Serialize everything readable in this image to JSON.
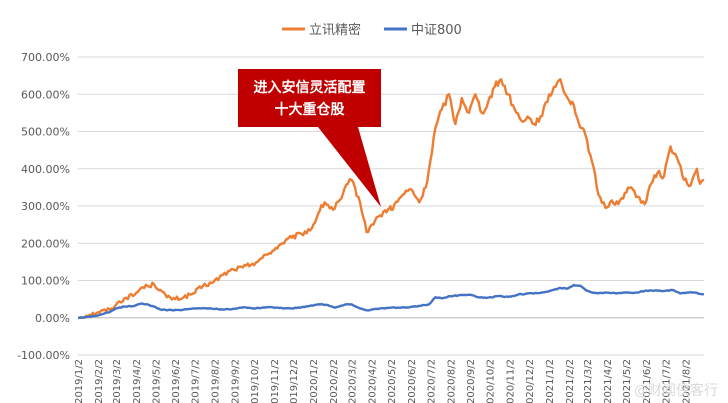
{
  "chart_data": {
    "type": "line",
    "ylim": [
      -1.0,
      7.0
    ],
    "ytick_labels": [
      "-100.00%",
      "0.00%",
      "100.00%",
      "200.00%",
      "300.00%",
      "400.00%",
      "500.00%",
      "600.00%",
      "700.00%"
    ],
    "ytick_values": [
      -1,
      0,
      1,
      2,
      3,
      4,
      5,
      6,
      7
    ],
    "xtick_labels": [
      "2019/1/2",
      "2019/2/2",
      "2019/3/2",
      "2019/4/2",
      "2019/5/2",
      "2019/6/2",
      "2019/7/2",
      "2019/8/2",
      "2019/9/2",
      "2019/10/2",
      "2019/11/2",
      "2019/12/2",
      "2020/1/2",
      "2020/2/2",
      "2020/3/2",
      "2020/4/2",
      "2020/5/2",
      "2020/6/2",
      "2020/7/2",
      "2020/8/2",
      "2020/9/2",
      "2020/10/2",
      "2020/11/2",
      "2020/12/2",
      "2021/1/2",
      "2021/2/2",
      "2021/3/2",
      "2021/4/2",
      "2021/5/2",
      "2021/6/2",
      "2021/7/2",
      "2021/8/2"
    ],
    "x_end": "2021/8/31",
    "legend_position": "top",
    "series": [
      {
        "name": "立讯精密",
        "color": "#ed7d31",
        "points": [
          [
            "2019/1/2",
            0.0
          ],
          [
            "2019/1/20",
            0.08
          ],
          [
            "2019/2/2",
            0.15
          ],
          [
            "2019/2/20",
            0.22
          ],
          [
            "2019/3/2",
            0.35
          ],
          [
            "2019/3/15",
            0.52
          ],
          [
            "2019/3/31",
            0.62
          ],
          [
            "2019/4/10",
            0.8
          ],
          [
            "2019/4/20",
            0.85
          ],
          [
            "2019/4/30",
            0.9
          ],
          [
            "2019/5/10",
            0.75
          ],
          [
            "2019/5/20",
            0.55
          ],
          [
            "2019/6/2",
            0.5
          ],
          [
            "2019/6/15",
            0.55
          ],
          [
            "2019/6/30",
            0.65
          ],
          [
            "2019/7/15",
            0.85
          ],
          [
            "2019/7/31",
            0.95
          ],
          [
            "2019/8/15",
            1.15
          ],
          [
            "2019/8/31",
            1.3
          ],
          [
            "2019/9/15",
            1.35
          ],
          [
            "2019/9/30",
            1.45
          ],
          [
            "2019/10/15",
            1.6
          ],
          [
            "2019/10/31",
            1.8
          ],
          [
            "2019/11/15",
            2.0
          ],
          [
            "2019/11/30",
            2.15
          ],
          [
            "2019/12/15",
            2.25
          ],
          [
            "2019/12/31",
            2.4
          ],
          [
            "2020/1/10",
            2.8
          ],
          [
            "2020/1/20",
            3.1
          ],
          [
            "2020/2/2",
            2.9
          ],
          [
            "2020/2/15",
            3.2
          ],
          [
            "2020/2/25",
            3.6
          ],
          [
            "2020/3/2",
            3.7
          ],
          [
            "2020/3/15",
            3.1
          ],
          [
            "2020/3/25",
            2.3
          ],
          [
            "2020/4/2",
            2.5
          ],
          [
            "2020/4/15",
            2.75
          ],
          [
            "2020/4/30",
            2.95
          ],
          [
            "2020/5/2",
            2.9
          ],
          [
            "2020/5/20",
            3.3
          ],
          [
            "2020/6/2",
            3.45
          ],
          [
            "2020/6/15",
            3.1
          ],
          [
            "2020/6/25",
            3.5
          ],
          [
            "2020/7/2",
            4.2
          ],
          [
            "2020/7/10",
            5.1
          ],
          [
            "2020/7/20",
            5.6
          ],
          [
            "2020/7/31",
            6.0
          ],
          [
            "2020/8/10",
            5.2
          ],
          [
            "2020/8/20",
            5.9
          ],
          [
            "2020/8/31",
            5.5
          ],
          [
            "2020/9/10",
            6.0
          ],
          [
            "2020/9/20",
            5.5
          ],
          [
            "2020/9/30",
            5.8
          ],
          [
            "2020/10/10",
            6.2
          ],
          [
            "2020/10/20",
            6.4
          ],
          [
            "2020/10/31",
            6.0
          ],
          [
            "2020/11/10",
            5.6
          ],
          [
            "2020/11/20",
            5.3
          ],
          [
            "2020/11/30",
            5.4
          ],
          [
            "2020/12/10",
            5.2
          ],
          [
            "2020/12/20",
            5.4
          ],
          [
            "2020/12/31",
            5.8
          ],
          [
            "2021/1/10",
            6.2
          ],
          [
            "2021/1/20",
            6.4
          ],
          [
            "2021/1/31",
            5.9
          ],
          [
            "2021/2/10",
            5.7
          ],
          [
            "2021/2/20",
            5.1
          ],
          [
            "2021/2/28",
            4.9
          ],
          [
            "2021/3/10",
            4.2
          ],
          [
            "2021/3/20",
            3.3
          ],
          [
            "2021/3/31",
            2.95
          ],
          [
            "2021/4/10",
            3.15
          ],
          [
            "2021/4/20",
            3.05
          ],
          [
            "2021/4/30",
            3.35
          ],
          [
            "2021/5/10",
            3.5
          ],
          [
            "2021/5/20",
            3.25
          ],
          [
            "2021/5/31",
            3.05
          ],
          [
            "2021/6/10",
            3.6
          ],
          [
            "2021/6/20",
            3.9
          ],
          [
            "2021/6/30",
            3.8
          ],
          [
            "2021/7/10",
            4.6
          ],
          [
            "2021/7/20",
            4.3
          ],
          [
            "2021/7/31",
            3.7
          ],
          [
            "2021/8/10",
            3.55
          ],
          [
            "2021/8/20",
            4.0
          ],
          [
            "2021/8/25",
            3.6
          ],
          [
            "2021/8/31",
            3.7
          ]
        ]
      },
      {
        "name": "中证800",
        "color": "#4472c4",
        "points": [
          [
            "2019/1/2",
            0.0
          ],
          [
            "2019/1/20",
            0.03
          ],
          [
            "2019/2/2",
            0.06
          ],
          [
            "2019/2/20",
            0.15
          ],
          [
            "2019/3/2",
            0.25
          ],
          [
            "2019/3/15",
            0.3
          ],
          [
            "2019/3/31",
            0.32
          ],
          [
            "2019/4/10",
            0.38
          ],
          [
            "2019/4/20",
            0.36
          ],
          [
            "2019/4/30",
            0.3
          ],
          [
            "2019/5/10",
            0.22
          ],
          [
            "2019/5/31",
            0.2
          ],
          [
            "2019/6/15",
            0.22
          ],
          [
            "2019/6/30",
            0.25
          ],
          [
            "2019/7/15",
            0.26
          ],
          [
            "2019/7/31",
            0.24
          ],
          [
            "2019/8/15",
            0.22
          ],
          [
            "2019/8/31",
            0.24
          ],
          [
            "2019/9/15",
            0.28
          ],
          [
            "2019/9/30",
            0.25
          ],
          [
            "2019/10/15",
            0.27
          ],
          [
            "2019/10/31",
            0.28
          ],
          [
            "2019/11/15",
            0.26
          ],
          [
            "2019/11/30",
            0.25
          ],
          [
            "2019/12/15",
            0.28
          ],
          [
            "2019/12/31",
            0.33
          ],
          [
            "2020/1/15",
            0.37
          ],
          [
            "2020/1/25",
            0.34
          ],
          [
            "2020/2/5",
            0.27
          ],
          [
            "2020/2/20",
            0.35
          ],
          [
            "2020/3/2",
            0.36
          ],
          [
            "2020/3/15",
            0.25
          ],
          [
            "2020/3/25",
            0.2
          ],
          [
            "2020/4/10",
            0.24
          ],
          [
            "2020/4/30",
            0.27
          ],
          [
            "2020/5/15",
            0.27
          ],
          [
            "2020/5/31",
            0.28
          ],
          [
            "2020/6/15",
            0.32
          ],
          [
            "2020/6/30",
            0.36
          ],
          [
            "2020/7/10",
            0.55
          ],
          [
            "2020/7/20",
            0.52
          ],
          [
            "2020/7/31",
            0.58
          ],
          [
            "2020/8/15",
            0.6
          ],
          [
            "2020/8/31",
            0.62
          ],
          [
            "2020/9/15",
            0.55
          ],
          [
            "2020/9/30",
            0.54
          ],
          [
            "2020/10/15",
            0.58
          ],
          [
            "2020/10/31",
            0.56
          ],
          [
            "2020/11/15",
            0.62
          ],
          [
            "2020/11/30",
            0.65
          ],
          [
            "2020/12/15",
            0.66
          ],
          [
            "2020/12/31",
            0.7
          ],
          [
            "2021/1/10",
            0.75
          ],
          [
            "2021/1/20",
            0.8
          ],
          [
            "2021/1/31",
            0.78
          ],
          [
            "2021/2/10",
            0.88
          ],
          [
            "2021/2/20",
            0.86
          ],
          [
            "2021/2/28",
            0.75
          ],
          [
            "2021/3/10",
            0.68
          ],
          [
            "2021/3/20",
            0.66
          ],
          [
            "2021/3/31",
            0.68
          ],
          [
            "2021/4/15",
            0.66
          ],
          [
            "2021/4/30",
            0.68
          ],
          [
            "2021/5/15",
            0.67
          ],
          [
            "2021/5/31",
            0.72
          ],
          [
            "2021/6/15",
            0.73
          ],
          [
            "2021/6/30",
            0.72
          ],
          [
            "2021/7/15",
            0.74
          ],
          [
            "2021/7/25",
            0.65
          ],
          [
            "2021/7/31",
            0.67
          ],
          [
            "2021/8/15",
            0.68
          ],
          [
            "2021/8/25",
            0.64
          ],
          [
            "2021/8/31",
            0.63
          ]
        ]
      }
    ],
    "annotation": {
      "lines": [
        "进入安信灵活配置",
        "十大重仓股"
      ],
      "color": "#c00000"
    }
  },
  "watermark": "@财闻侠客行"
}
